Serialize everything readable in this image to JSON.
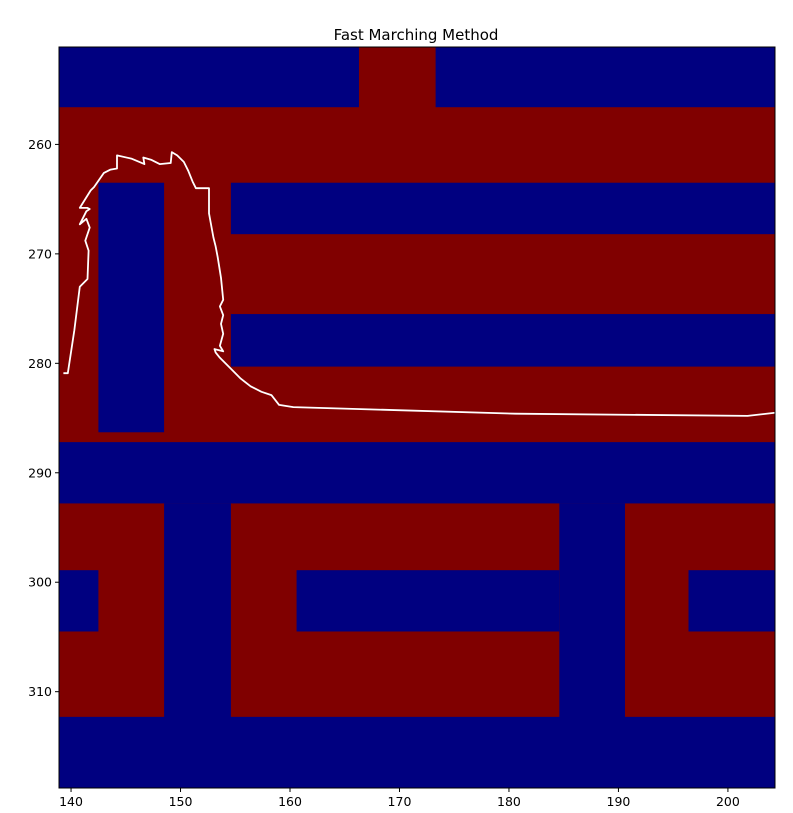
{
  "chart_data": {
    "type": "heatmap",
    "title": "Fast Marching Method",
    "xlabel": "",
    "ylabel": "",
    "xlim": [
      138.9,
      204.3
    ],
    "ylim": [
      318.8,
      251.1
    ],
    "xticks": [
      140,
      150,
      160,
      170,
      180,
      190,
      200
    ],
    "yticks": [
      260,
      270,
      280,
      290,
      300,
      310
    ],
    "grid": false,
    "colormap": "jet",
    "colors": {
      "high": "#800000",
      "low": "#000080",
      "path": "#ffffff"
    },
    "regions": [
      {
        "value": 1,
        "x": [
          138.9,
          204.3
        ],
        "y": [
          251.1,
          318.8
        ]
      },
      {
        "value": 0,
        "x": [
          138.9,
          166.3
        ],
        "y": [
          251.1,
          256.6
        ]
      },
      {
        "value": 0,
        "x": [
          173.3,
          204.3
        ],
        "y": [
          251.1,
          256.6
        ]
      },
      {
        "value": 0,
        "x": [
          142.5,
          148.5
        ],
        "y": [
          263.5,
          286.3
        ]
      },
      {
        "value": 0,
        "x": [
          154.6,
          204.3
        ],
        "y": [
          263.5,
          268.2
        ]
      },
      {
        "value": 0,
        "x": [
          154.6,
          204.3
        ],
        "y": [
          275.5,
          280.3
        ]
      },
      {
        "value": 0,
        "x": [
          138.9,
          204.3
        ],
        "y": [
          287.2,
          292.8
        ]
      },
      {
        "value": 0,
        "x": [
          148.5,
          154.6
        ],
        "y": [
          292.8,
          318.8
        ]
      },
      {
        "value": 0,
        "x": [
          138.9,
          204.3
        ],
        "y": [
          312.3,
          318.8
        ]
      },
      {
        "value": 0,
        "x": [
          184.6,
          190.6
        ],
        "y": [
          292.8,
          318.8
        ]
      },
      {
        "value": 0,
        "x": [
          160.6,
          184.6
        ],
        "y": [
          298.9,
          304.5
        ]
      },
      {
        "value": 0,
        "x": [
          138.9,
          142.5
        ],
        "y": [
          298.9,
          304.5
        ]
      },
      {
        "value": 0,
        "x": [
          196.4,
          204.3
        ],
        "y": [
          298.9,
          304.5
        ]
      }
    ],
    "path": [
      [
        139.3,
        280.9
      ],
      [
        139.7,
        280.9
      ],
      [
        140.3,
        277.0
      ],
      [
        140.8,
        273.0
      ],
      [
        141.5,
        272.3
      ],
      [
        141.6,
        269.7
      ],
      [
        141.3,
        268.8
      ],
      [
        141.7,
        267.6
      ],
      [
        141.4,
        266.8
      ],
      [
        140.8,
        267.3
      ],
      [
        141.4,
        266.1
      ],
      [
        141.7,
        265.9
      ],
      [
        141.5,
        265.8
      ],
      [
        140.8,
        265.8
      ],
      [
        141.8,
        264.2
      ],
      [
        142.1,
        263.9
      ],
      [
        143.0,
        262.6
      ],
      [
        143.6,
        262.3
      ],
      [
        144.2,
        262.2
      ],
      [
        144.2,
        261.0
      ],
      [
        145.5,
        261.3
      ],
      [
        146.7,
        261.8
      ],
      [
        146.6,
        261.2
      ],
      [
        147.3,
        261.4
      ],
      [
        148.1,
        261.8
      ],
      [
        149.1,
        261.7
      ],
      [
        149.2,
        260.7
      ],
      [
        149.7,
        261.0
      ],
      [
        150.3,
        261.6
      ],
      [
        150.7,
        262.4
      ],
      [
        151.1,
        263.4
      ],
      [
        151.4,
        264.0
      ],
      [
        152.6,
        264.0
      ],
      [
        152.6,
        266.3
      ],
      [
        153.0,
        268.5
      ],
      [
        153.2,
        269.3
      ],
      [
        153.4,
        270.3
      ],
      [
        153.7,
        272.2
      ],
      [
        153.9,
        274.2
      ],
      [
        153.6,
        274.8
      ],
      [
        153.9,
        275.6
      ],
      [
        153.7,
        276.4
      ],
      [
        153.9,
        277.3
      ],
      [
        153.6,
        278.4
      ],
      [
        153.9,
        278.9
      ],
      [
        153.1,
        278.7
      ],
      [
        153.2,
        279.0
      ],
      [
        153.6,
        279.5
      ],
      [
        154.6,
        280.5
      ],
      [
        155.5,
        281.4
      ],
      [
        156.4,
        282.1
      ],
      [
        157.4,
        282.6
      ],
      [
        158.3,
        282.9
      ],
      [
        159.0,
        283.8
      ],
      [
        160.3,
        284.0
      ],
      [
        180.6,
        284.6
      ],
      [
        201.8,
        284.8
      ],
      [
        204.4,
        284.5
      ]
    ]
  }
}
